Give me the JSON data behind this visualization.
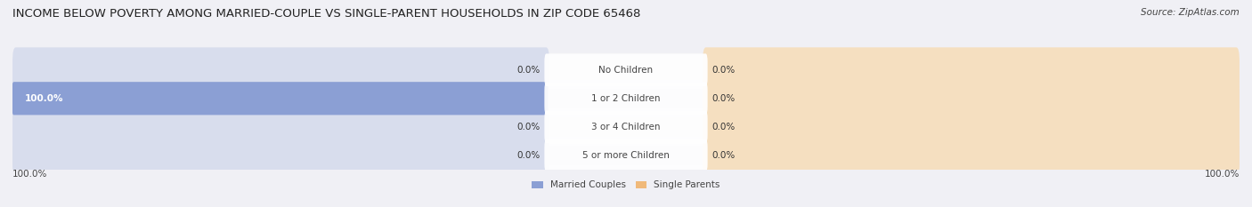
{
  "title": "INCOME BELOW POVERTY AMONG MARRIED-COUPLE VS SINGLE-PARENT HOUSEHOLDS IN ZIP CODE 65468",
  "source": "Source: ZipAtlas.com",
  "categories": [
    "No Children",
    "1 or 2 Children",
    "3 or 4 Children",
    "5 or more Children"
  ],
  "married_values": [
    0.0,
    100.0,
    0.0,
    0.0
  ],
  "single_values": [
    0.0,
    0.0,
    0.0,
    0.0
  ],
  "married_color": "#8b9fd4",
  "single_color": "#f0b97a",
  "bar_bg_married": "#d8dded",
  "bar_bg_single": "#f5dfc0",
  "row_bg_even": "#ebebf0",
  "row_bg_odd": "#dddde8",
  "axis_max": 100.0,
  "title_fontsize": 9.5,
  "source_fontsize": 7.5,
  "value_fontsize": 7.5,
  "category_fontsize": 7.5,
  "legend_fontsize": 7.5,
  "axis_label_fontsize": 7.5,
  "title_color": "#222222",
  "text_color": "#444444",
  "value_color_dark": "#333333",
  "value_color_light": "#ffffff",
  "cat_label_bg": "#ffffff",
  "background_color": "#f0f0f5"
}
